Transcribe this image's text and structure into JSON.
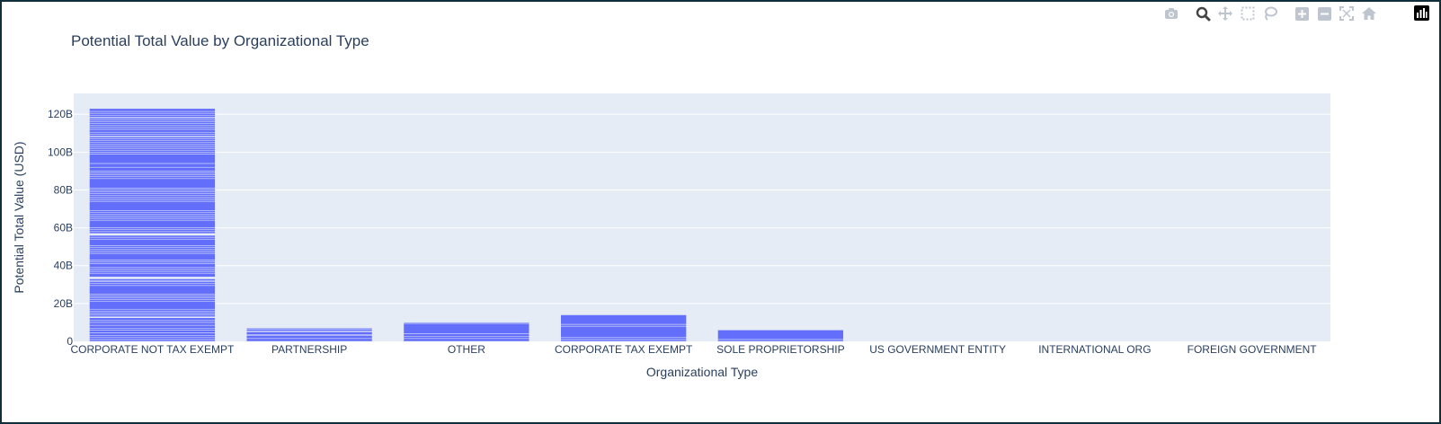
{
  "title": "Potential Total Value by Organizational Type",
  "modebar": {
    "buttons": [
      {
        "name": "camera-icon"
      },
      {
        "name": "zoom-icon"
      },
      {
        "name": "pan-icon"
      },
      {
        "name": "box-select-icon"
      },
      {
        "name": "lasso-select-icon"
      },
      {
        "name": "zoom-in-icon"
      },
      {
        "name": "zoom-out-icon"
      },
      {
        "name": "autoscale-icon"
      },
      {
        "name": "reset-axes-icon"
      }
    ],
    "logo": "plotly-logo-icon"
  },
  "chart_data": {
    "type": "bar",
    "title": "Potential Total Value by Organizational Type",
    "xlabel": "Organizational Type",
    "ylabel": "Potential Total Value (USD)",
    "ylim": [
      0,
      131
    ],
    "yticks": [
      0,
      20,
      40,
      60,
      80,
      100,
      120
    ],
    "ytick_labels": [
      "0",
      "20B",
      "40B",
      "60B",
      "80B",
      "100B",
      "120B"
    ],
    "categories": [
      "CORPORATE NOT TAX EXEMPT",
      "PARTNERSHIP",
      "OTHER",
      "CORPORATE TAX EXEMPT",
      "SOLE PROPRIETORSHIP",
      "US GOVERNMENT ENTITY",
      "INTERNATIONAL ORG",
      "FOREIGN GOVERNMENT"
    ],
    "values": [
      123,
      7,
      10,
      14,
      6,
      0,
      0,
      0
    ],
    "unit": "B USD",
    "grid": true,
    "colors": {
      "bar": "#636efa",
      "plot_bg": "#e5ecf6",
      "grid": "#ffffff",
      "text": "#2a3f5f"
    },
    "stack_segments": [
      [
        [
          0,
          1
        ],
        [
          1,
          2.5
        ],
        [
          2,
          3
        ],
        [
          3,
          4.5
        ],
        [
          4.5,
          6
        ],
        [
          6,
          7
        ],
        [
          7,
          8.5
        ],
        [
          8.5,
          10
        ],
        [
          10,
          11
        ],
        [
          11,
          12.5
        ],
        [
          13,
          14
        ],
        [
          14,
          15
        ],
        [
          15,
          16
        ],
        [
          16,
          17
        ],
        [
          17,
          21
        ],
        [
          21,
          22
        ],
        [
          22,
          23
        ],
        [
          23,
          24
        ],
        [
          24,
          25
        ],
        [
          25,
          29.5
        ],
        [
          29.5,
          30.5
        ],
        [
          30.5,
          31.5
        ],
        [
          31.5,
          32
        ],
        [
          32,
          33
        ],
        [
          34,
          36
        ],
        [
          36,
          37
        ],
        [
          37,
          38
        ],
        [
          38,
          39
        ],
        [
          39,
          41
        ],
        [
          41,
          42
        ],
        [
          42,
          43
        ],
        [
          43,
          46.5
        ],
        [
          46.5,
          47.5
        ],
        [
          47.5,
          48.5
        ],
        [
          48.5,
          49.5
        ],
        [
          49.5,
          50.5
        ],
        [
          50.5,
          54
        ],
        [
          54,
          55
        ],
        [
          55,
          56
        ],
        [
          57,
          58
        ],
        [
          58,
          59
        ],
        [
          59,
          60
        ],
        [
          60,
          64
        ],
        [
          64,
          65
        ],
        [
          65,
          66
        ],
        [
          66,
          67
        ],
        [
          67,
          68
        ],
        [
          68,
          69
        ],
        [
          69,
          74
        ],
        [
          74,
          75
        ],
        [
          75,
          76
        ],
        [
          76,
          77
        ],
        [
          77,
          78
        ],
        [
          78,
          79
        ],
        [
          79,
          80
        ],
        [
          80,
          81
        ],
        [
          81,
          86
        ],
        [
          86,
          87
        ],
        [
          87,
          88
        ],
        [
          88,
          89
        ],
        [
          89,
          90
        ],
        [
          90,
          92
        ],
        [
          92,
          94
        ],
        [
          94,
          99
        ],
        [
          99,
          100
        ],
        [
          100,
          101
        ],
        [
          101,
          102
        ],
        [
          102,
          103
        ],
        [
          103,
          104
        ],
        [
          104,
          105
        ],
        [
          105,
          106
        ],
        [
          106,
          107
        ],
        [
          107,
          108
        ],
        [
          108,
          108.5
        ],
        [
          108.5,
          109.5
        ],
        [
          109.5,
          110.5
        ],
        [
          110.5,
          112
        ],
        [
          112,
          113
        ],
        [
          113,
          114
        ],
        [
          114,
          115
        ],
        [
          115,
          116
        ],
        [
          116,
          117
        ],
        [
          117,
          118
        ],
        [
          118,
          118.5
        ],
        [
          118.5,
          119.5
        ],
        [
          119.5,
          120.5
        ],
        [
          120.5,
          121.5
        ],
        [
          121.5,
          123
        ]
      ],
      [
        [
          0,
          1.5
        ],
        [
          1.5,
          3
        ],
        [
          3,
          3.5
        ],
        [
          3.5,
          5
        ],
        [
          5,
          5.5
        ],
        [
          5.5,
          6.5
        ],
        [
          6.5,
          7
        ]
      ],
      [
        [
          0,
          1.5
        ],
        [
          1.5,
          2.5
        ],
        [
          2.5,
          4
        ],
        [
          4,
          9.5
        ],
        [
          9.5,
          10
        ]
      ],
      [
        [
          0,
          1
        ],
        [
          1,
          2
        ],
        [
          2,
          8
        ],
        [
          8,
          9
        ],
        [
          9,
          14
        ]
      ],
      [
        [
          0,
          1
        ],
        [
          1,
          6
        ]
      ],
      [],
      [],
      []
    ]
  }
}
